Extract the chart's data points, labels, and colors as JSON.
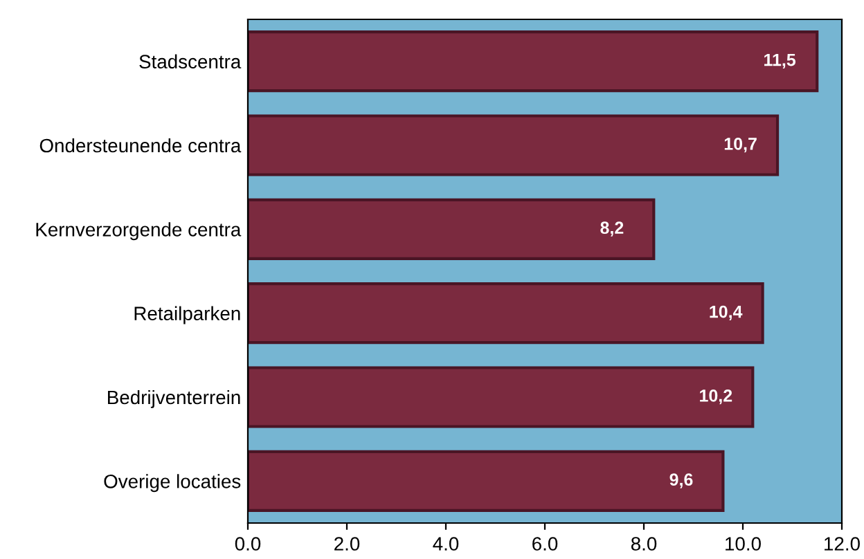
{
  "chart_data": {
    "type": "bar",
    "orientation": "horizontal",
    "categories": [
      "Stadscentra",
      "Ondersteunende centra",
      "Kernverzorgende centra",
      "Retailparken",
      "Bedrijventerrein",
      "Overige locaties"
    ],
    "values": [
      11.5,
      10.7,
      8.2,
      10.4,
      10.2,
      9.6
    ],
    "value_labels": [
      "11,5",
      "10,7",
      "8,2",
      "10,4",
      "10,2",
      "9,6"
    ],
    "color": "#7b2a3f",
    "xlim": [
      0,
      12
    ],
    "xticks": [
      {
        "value": 0,
        "label": "0.0"
      },
      {
        "value": 2,
        "label": "2.0"
      },
      {
        "value": 4,
        "label": "4.0"
      },
      {
        "value": 6,
        "label": "6.0"
      },
      {
        "value": 8,
        "label": "8.0"
      },
      {
        "value": 10,
        "label": "10.0"
      },
      {
        "value": 12,
        "label": "12.0"
      }
    ],
    "bands": [
      {
        "axis": "x",
        "from": 0,
        "to": 12,
        "color": "#76b5d2"
      }
    ],
    "grid": false,
    "legend": false
  }
}
